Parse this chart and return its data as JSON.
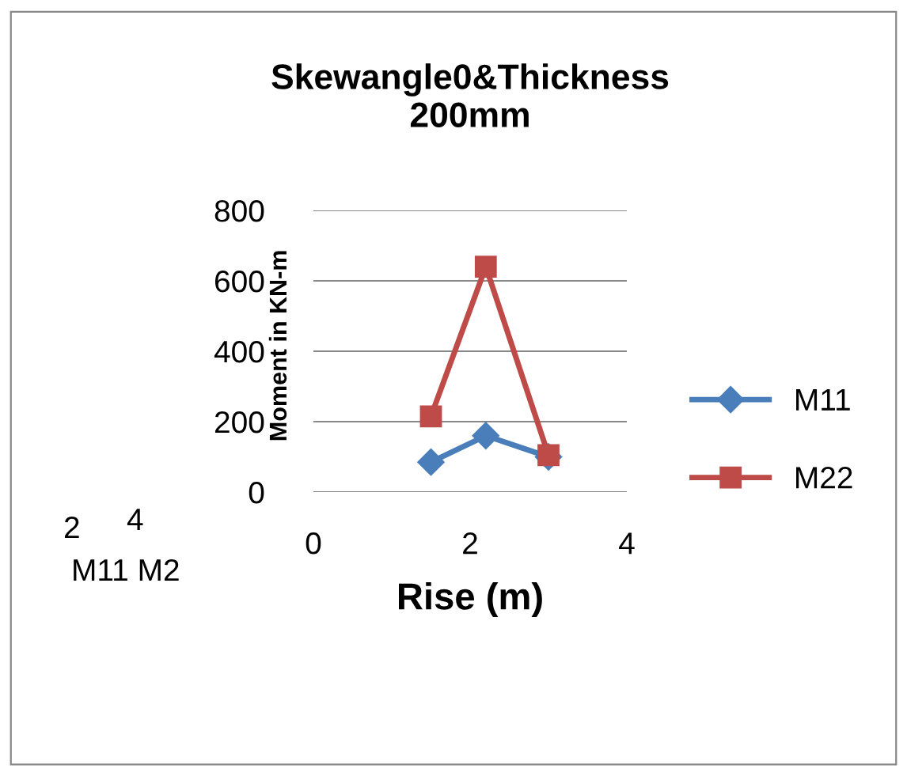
{
  "chart_data": {
    "type": "line",
    "title": "Skewangle0&Thickness\n200mm",
    "xlabel": "Rise (m)",
    "ylabel": "Moment in KN-m",
    "xlim": [
      0,
      4
    ],
    "xticks": [
      0,
      2,
      4
    ],
    "ylim": [
      0,
      800
    ],
    "yticks": [
      0,
      200,
      400,
      600,
      800
    ],
    "grid": "y",
    "legend": "right",
    "line_style": "solid",
    "annotations": [
      "2",
      "4",
      "M11 M2"
    ],
    "series": [
      {
        "name": "M11",
        "color": "#4a7ebb",
        "x": [
          1.5,
          2.2,
          3
        ],
        "values": [
          85,
          160,
          100
        ],
        "marker": "diamond"
      },
      {
        "name": "M22",
        "color": "#be4b48",
        "x": [
          1.5,
          2.2,
          3
        ],
        "values": [
          215,
          640,
          105
        ],
        "marker": "square"
      }
    ]
  }
}
